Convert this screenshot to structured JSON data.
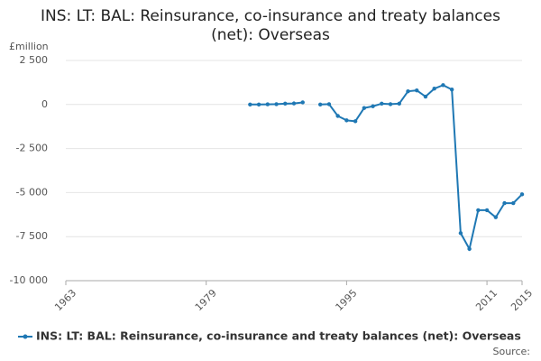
{
  "chart_data": {
    "type": "line",
    "title": "INS: LT: BAL: Reinsurance, co-insurance and treaty balances (net): Overseas",
    "y_label": "£million",
    "source": "Source:",
    "x": [
      1984,
      1985,
      1986,
      1987,
      1988,
      1989,
      1990,
      1991,
      1992,
      1993,
      1994,
      1995,
      1996,
      1997,
      1998,
      1999,
      2000,
      2001,
      2002,
      2003,
      2004,
      2005,
      2006,
      2007,
      2008,
      2009,
      2010,
      2011,
      2012,
      2013,
      2014,
      2015
    ],
    "series": [
      {
        "name": "INS: LT: BAL: Reinsurance, co-insurance and treaty balances (net): Overseas",
        "color": "#1f78b4",
        "values": [
          0,
          0,
          10,
          20,
          50,
          60,
          120,
          null,
          0,
          20,
          -650,
          -900,
          -950,
          -200,
          -100,
          50,
          20,
          50,
          750,
          800,
          450,
          900,
          1100,
          850,
          -7300,
          -8200,
          -6000,
          -6000,
          -6400,
          -5600,
          -5600,
          -5100
        ]
      }
    ],
    "xlim": [
      1963,
      2015
    ],
    "xticks": [
      1963,
      1979,
      1995,
      2011,
      2015
    ],
    "ylim": [
      -10000,
      2500
    ],
    "yticks": [
      {
        "value": -10000,
        "label": "-10 000"
      },
      {
        "value": -7500,
        "label": "-7 500"
      },
      {
        "value": -5000,
        "label": "-5 000"
      },
      {
        "value": -2500,
        "label": "-2 500"
      },
      0,
      {
        "value": 2500,
        "label": "2 500"
      }
    ],
    "grid": true,
    "legend": "bottom"
  }
}
